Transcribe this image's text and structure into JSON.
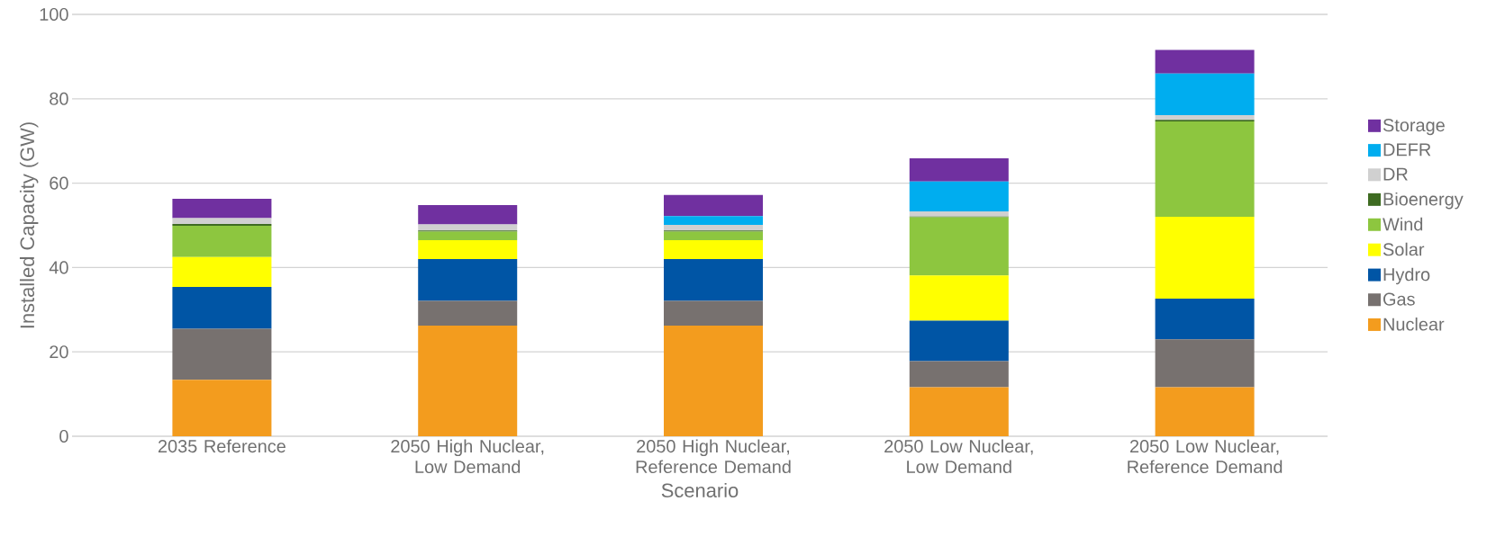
{
  "chart_data": {
    "type": "bar",
    "stacked": true,
    "xlabel": "Scenario",
    "ylabel": "Installed Capacity (GW)",
    "categories": [
      "2035 Reference",
      "2050 High Nuclear, Low Demand",
      "2050 High Nuclear, Reference Demand",
      "2050 Low Nuclear, Low Demand",
      "2050 Low Nuclear, Reference Demand"
    ],
    "series": [
      {
        "name": "Nuclear",
        "color": "#f39c1e",
        "values": [
          13.4,
          26.2,
          26.2,
          11.6,
          11.6
        ]
      },
      {
        "name": "Gas",
        "color": "#77716f",
        "values": [
          12.1,
          5.9,
          5.9,
          6.2,
          11.4
        ]
      },
      {
        "name": "Hydro",
        "color": "#0055a5",
        "values": [
          9.9,
          9.9,
          9.9,
          9.6,
          9.6
        ]
      },
      {
        "name": "Solar",
        "color": "#ffff00",
        "values": [
          7.1,
          4.5,
          4.5,
          10.7,
          19.4
        ]
      },
      {
        "name": "Wind",
        "color": "#8dc63f",
        "values": [
          7.4,
          2.0,
          2.0,
          13.8,
          22.6
        ]
      },
      {
        "name": "Bioenergy",
        "color": "#3e6b21",
        "values": [
          0.4,
          0.3,
          0.3,
          0.2,
          0.4
        ]
      },
      {
        "name": "DR",
        "color": "#d0d0d0",
        "values": [
          1.4,
          1.4,
          1.3,
          1.2,
          1.1
        ]
      },
      {
        "name": "DEFR",
        "color": "#00adef",
        "values": [
          0,
          0,
          2.1,
          7.1,
          9.9
        ]
      },
      {
        "name": "Storage",
        "color": "#7030a0",
        "values": [
          4.6,
          4.6,
          5.0,
          5.5,
          5.6
        ]
      }
    ],
    "ylim": [
      0,
      100
    ],
    "yticks": [
      0,
      20,
      40,
      60,
      80,
      100
    ],
    "grid": "y",
    "legend": "right"
  }
}
